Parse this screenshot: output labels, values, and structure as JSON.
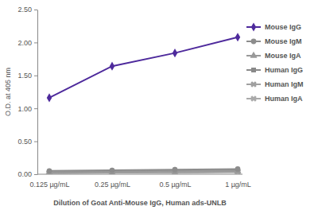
{
  "chart_data": {
    "type": "line",
    "y_label": "O.D. at 405 nm",
    "x_label": "Dilution of Goat Anti-Mouse IgG, Human ads-UNLB",
    "categories": [
      "0.125 µg/mL",
      "0.25 µg/mL",
      "0.5 µg/mL",
      "1 µg/mL"
    ],
    "series": [
      {
        "name": "Mouse IgG",
        "color": "#4e2a9c",
        "marker": "diamond",
        "values": [
          1.16,
          1.64,
          1.84,
          2.08
        ]
      },
      {
        "name": "Mouse IgM",
        "color": "#8c8c8c",
        "marker": "circle",
        "values": [
          0.05,
          0.06,
          0.07,
          0.08
        ]
      },
      {
        "name": "Mouse IgA",
        "color": "#999999",
        "marker": "triangle",
        "values": [
          0.03,
          0.04,
          0.05,
          0.05
        ]
      },
      {
        "name": "Human IgG",
        "color": "#8a8a8a",
        "marker": "square",
        "values": [
          0.03,
          0.04,
          0.05,
          0.06
        ]
      },
      {
        "name": "Human IgM",
        "color": "#a0a0a0",
        "marker": "x",
        "values": [
          0.02,
          0.03,
          0.03,
          0.04
        ]
      },
      {
        "name": "Human IgA",
        "color": "#aaaaaa",
        "marker": "x",
        "values": [
          0.01,
          0.02,
          0.02,
          0.03
        ]
      }
    ],
    "ylim": [
      0,
      2.5
    ],
    "yticks": [
      {
        "value": 0,
        "label": "0.00"
      },
      {
        "value": 0.5,
        "label": "0.50"
      },
      {
        "value": 1,
        "label": "1.00"
      },
      {
        "value": 1.5,
        "label": "1.50"
      },
      {
        "value": 2,
        "label": "2.00"
      },
      {
        "value": 2.5,
        "label": "2.50"
      }
    ],
    "grid": false,
    "legend": "right"
  }
}
